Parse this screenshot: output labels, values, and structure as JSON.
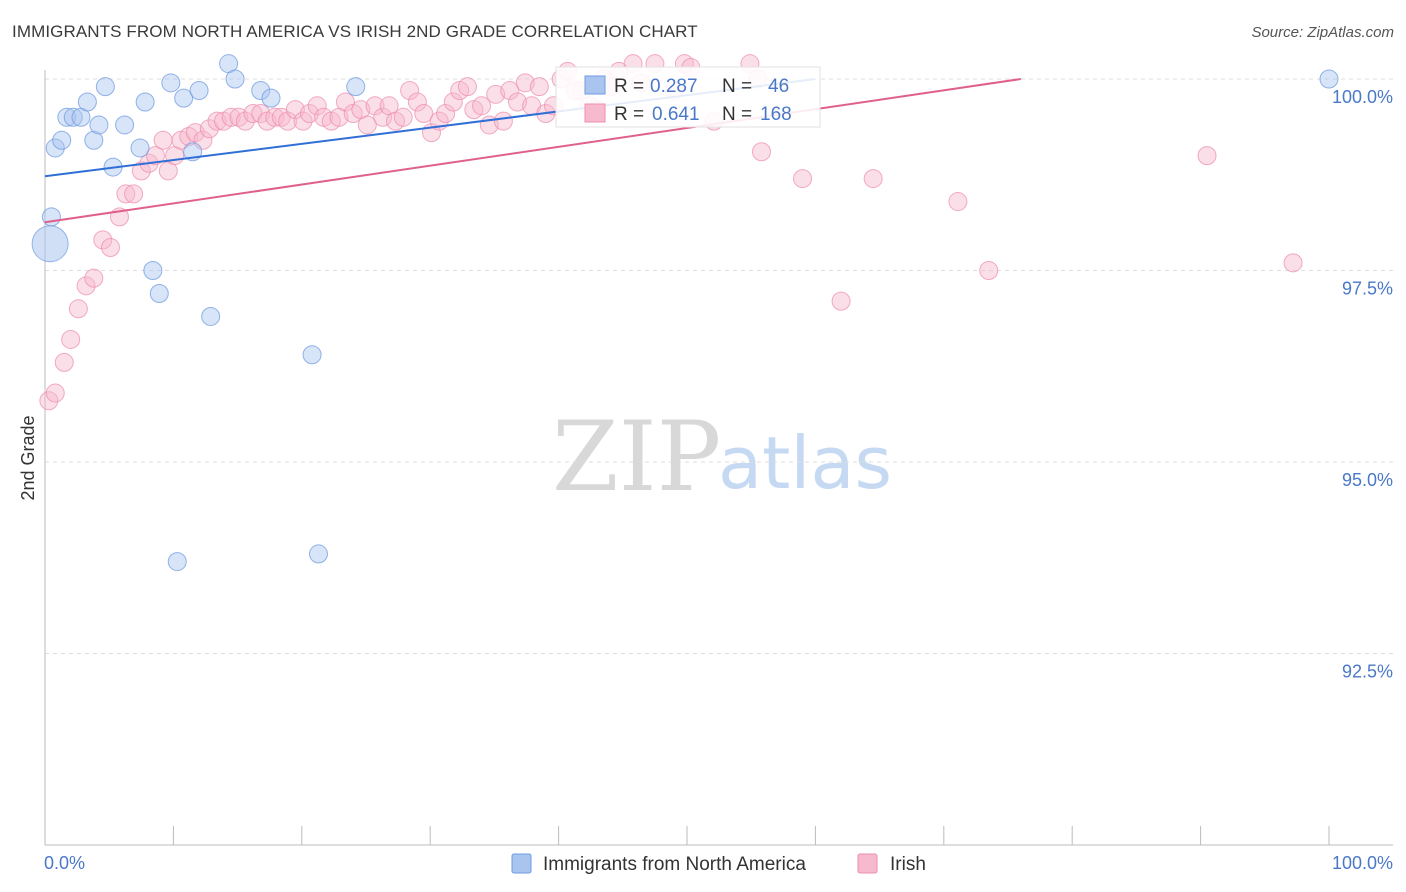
{
  "title": "IMMIGRANTS FROM NORTH AMERICA VS IRISH 2ND GRADE CORRELATION CHART",
  "source": "Source: ZipAtlas.com",
  "watermark": {
    "zip": "ZIP",
    "atlas": "atlas"
  },
  "colors": {
    "blue": "#6f9be0",
    "blue_fill": "#a9c4ef",
    "blue_line": "#2f6fd6",
    "pink": "#ee8fb0",
    "pink_fill": "#f6b9cd",
    "pink_line": "#e0608c",
    "tick_text": "#4a78c8",
    "grid": "#dddddd"
  },
  "chart_data": {
    "type": "scatter",
    "title": "IMMIGRANTS FROM NORTH AMERICA VS IRISH 2ND GRADE CORRELATION CHART",
    "xlabel": "",
    "ylabel": "2nd Grade",
    "xlim": [
      0,
      100
    ],
    "ylim": [
      89.8,
      100.4
    ],
    "x_tick_labels": {
      "left": "0.0%",
      "right": "100.0%"
    },
    "y_ticks": [
      {
        "value": 100.0,
        "label": "100.0%"
      },
      {
        "value": 97.5,
        "label": "97.5%"
      },
      {
        "value": 95.0,
        "label": "95.0%"
      },
      {
        "value": 92.5,
        "label": "92.5%"
      }
    ],
    "legend": {
      "stats": [
        {
          "r_label": "R =",
          "r": "0.287",
          "n_label": "N =",
          "n": "46"
        },
        {
          "r_label": "R =",
          "r": "0.641",
          "n_label": "N =",
          "n": "168"
        }
      ],
      "items": [
        "Immigrants from North America",
        "Irish"
      ]
    },
    "series": [
      {
        "name": "Immigrants from North America",
        "trend": {
          "x": [
            0,
            60
          ],
          "y": [
            98.73,
            100.0
          ]
        },
        "points": [
          [
            0.5,
            98.2
          ],
          [
            0.8,
            99.1
          ],
          [
            1.3,
            99.2
          ],
          [
            1.7,
            99.5
          ],
          [
            2.2,
            99.5
          ],
          [
            2.8,
            99.5
          ],
          [
            3.3,
            99.7
          ],
          [
            3.8,
            99.2
          ],
          [
            4.2,
            99.4
          ],
          [
            4.7,
            99.9
          ],
          [
            5.3,
            98.85
          ],
          [
            6.2,
            99.4
          ],
          [
            6.9,
            100.3
          ],
          [
            7.4,
            99.1
          ],
          [
            7.8,
            99.7
          ],
          [
            8.4,
            97.5
          ],
          [
            8.9,
            97.2
          ],
          [
            9.6,
            100.3
          ],
          [
            9.8,
            99.95
          ],
          [
            10.3,
            93.7
          ],
          [
            10.8,
            99.75
          ],
          [
            11.2,
            100.8
          ],
          [
            11.5,
            99.05
          ],
          [
            12.0,
            99.85
          ],
          [
            12.9,
            96.9
          ],
          [
            13.2,
            100.8
          ],
          [
            14.3,
            100.2
          ],
          [
            14.8,
            100.0
          ],
          [
            15.2,
            100.8
          ],
          [
            16.8,
            99.85
          ],
          [
            17.6,
            99.75
          ],
          [
            20.8,
            96.4
          ],
          [
            21.3,
            93.8
          ],
          [
            24.2,
            99.9
          ],
          [
            26.0,
            100.8
          ],
          [
            28.6,
            100.8
          ],
          [
            31.8,
            100.8
          ],
          [
            32.6,
            100.8
          ],
          [
            33.0,
            100.8
          ],
          [
            33.5,
            100.8
          ],
          [
            34.1,
            100.8
          ],
          [
            41.0,
            100.8
          ],
          [
            47.5,
            100.8
          ],
          [
            53.5,
            100.8
          ],
          [
            60.5,
            100.8
          ],
          [
            100.0,
            100.0
          ]
        ]
      },
      {
        "name": "Irish",
        "trend": {
          "x": [
            0,
            76
          ],
          "y": [
            98.13,
            100.0
          ]
        },
        "points": [
          [
            0.3,
            95.8
          ],
          [
            0.8,
            95.9
          ],
          [
            1.5,
            96.3
          ],
          [
            2.0,
            96.6
          ],
          [
            2.6,
            97.0
          ],
          [
            3.2,
            97.3
          ],
          [
            3.8,
            97.4
          ],
          [
            4.5,
            97.9
          ],
          [
            5.1,
            97.8
          ],
          [
            5.8,
            98.2
          ],
          [
            6.3,
            98.5
          ],
          [
            6.9,
            98.5
          ],
          [
            7.5,
            98.8
          ],
          [
            8.1,
            98.9
          ],
          [
            8.6,
            99.0
          ],
          [
            9.2,
            99.2
          ],
          [
            9.6,
            98.8
          ],
          [
            10.1,
            99.0
          ],
          [
            10.6,
            99.2
          ],
          [
            11.2,
            99.25
          ],
          [
            11.7,
            99.3
          ],
          [
            12.3,
            99.2
          ],
          [
            12.8,
            99.35
          ],
          [
            13.4,
            99.45
          ],
          [
            13.9,
            99.45
          ],
          [
            14.5,
            99.5
          ],
          [
            15.1,
            99.5
          ],
          [
            15.6,
            99.45
          ],
          [
            16.2,
            99.55
          ],
          [
            16.8,
            99.55
          ],
          [
            17.3,
            99.45
          ],
          [
            17.9,
            99.5
          ],
          [
            18.4,
            99.5
          ],
          [
            18.9,
            99.45
          ],
          [
            19.5,
            99.6
          ],
          [
            20.1,
            99.45
          ],
          [
            20.6,
            99.55
          ],
          [
            21.2,
            99.65
          ],
          [
            21.7,
            99.5
          ],
          [
            22.3,
            99.45
          ],
          [
            22.9,
            99.5
          ],
          [
            23.4,
            99.7
          ],
          [
            24.0,
            99.55
          ],
          [
            24.6,
            99.6
          ],
          [
            25.1,
            99.4
          ],
          [
            25.7,
            99.65
          ],
          [
            26.3,
            99.5
          ],
          [
            26.8,
            99.65
          ],
          [
            27.3,
            99.45
          ],
          [
            27.9,
            99.5
          ],
          [
            28.4,
            99.85
          ],
          [
            29.0,
            99.7
          ],
          [
            29.5,
            99.55
          ],
          [
            30.1,
            99.3
          ],
          [
            30.7,
            99.45
          ],
          [
            31.2,
            99.55
          ],
          [
            31.8,
            99.7
          ],
          [
            32.3,
            99.85
          ],
          [
            32.9,
            99.9
          ],
          [
            33.4,
            99.6
          ],
          [
            34.0,
            99.65
          ],
          [
            34.6,
            99.4
          ],
          [
            35.1,
            99.8
          ],
          [
            35.7,
            99.45
          ],
          [
            36.2,
            99.85
          ],
          [
            36.8,
            99.7
          ],
          [
            37.4,
            99.95
          ],
          [
            37.9,
            99.65
          ],
          [
            38.5,
            99.9
          ],
          [
            39.0,
            99.55
          ],
          [
            39.6,
            99.65
          ],
          [
            40.2,
            100.0
          ],
          [
            40.7,
            100.1
          ],
          [
            41.3,
            99.85
          ],
          [
            41.8,
            99.85
          ],
          [
            42.4,
            99.65
          ],
          [
            43.0,
            99.6
          ],
          [
            43.5,
            100.0
          ],
          [
            44.1,
            99.9
          ],
          [
            44.7,
            100.1
          ],
          [
            45.2,
            100.3
          ],
          [
            45.8,
            100.2
          ],
          [
            46.4,
            99.95
          ],
          [
            47.0,
            100.3
          ],
          [
            47.5,
            100.2
          ],
          [
            48.1,
            100.35
          ],
          [
            48.6,
            100.3
          ],
          [
            49.2,
            100.25
          ],
          [
            49.8,
            100.2
          ],
          [
            50.3,
            100.15
          ],
          [
            50.9,
            100.3
          ],
          [
            51.4,
            100.35
          ],
          [
            52.0,
            100.3
          ],
          [
            52.6,
            100.3
          ],
          [
            53.2,
            100.3
          ],
          [
            53.8,
            100.35
          ],
          [
            54.3,
            100.25
          ],
          [
            54.9,
            100.2
          ],
          [
            55.5,
            100.0
          ],
          [
            56.0,
            100.3
          ],
          [
            56.6,
            100.35
          ],
          [
            57.2,
            100.3
          ],
          [
            57.7,
            100.3
          ],
          [
            58.3,
            100.3
          ],
          [
            58.8,
            100.35
          ],
          [
            59.4,
            100.3
          ],
          [
            60.0,
            100.3
          ],
          [
            60.6,
            100.3
          ],
          [
            61.1,
            100.35
          ],
          [
            61.7,
            100.3
          ],
          [
            62.3,
            100.3
          ],
          [
            62.9,
            100.3
          ],
          [
            63.4,
            100.3
          ],
          [
            64.0,
            100.3
          ],
          [
            64.6,
            100.35
          ],
          [
            65.2,
            100.3
          ],
          [
            65.7,
            100.3
          ],
          [
            66.3,
            100.3
          ],
          [
            66.9,
            100.3
          ],
          [
            67.5,
            100.3
          ],
          [
            68.0,
            100.3
          ],
          [
            68.6,
            100.3
          ],
          [
            69.2,
            100.3
          ],
          [
            69.7,
            100.3
          ],
          [
            70.3,
            100.3
          ],
          [
            70.9,
            100.3
          ],
          [
            71.5,
            100.3
          ],
          [
            72.0,
            100.3
          ],
          [
            72.6,
            100.3
          ],
          [
            73.2,
            100.3
          ],
          [
            73.8,
            100.3
          ],
          [
            74.3,
            100.3
          ],
          [
            74.9,
            100.3
          ],
          [
            75.5,
            100.3
          ],
          [
            76.1,
            100.3
          ],
          [
            76.7,
            100.3
          ],
          [
            77.2,
            100.3
          ],
          [
            77.8,
            100.3
          ],
          [
            78.4,
            100.3
          ],
          [
            79.0,
            100.3
          ],
          [
            79.6,
            100.3
          ],
          [
            80.1,
            100.3
          ],
          [
            80.7,
            100.3
          ],
          [
            81.3,
            100.3
          ],
          [
            81.9,
            100.3
          ],
          [
            82.5,
            100.3
          ],
          [
            83.1,
            100.3
          ],
          [
            83.7,
            100.3
          ],
          [
            84.3,
            100.3
          ],
          [
            85.0,
            100.3
          ],
          [
            86.2,
            100.3
          ],
          [
            87.4,
            100.3
          ],
          [
            88.6,
            100.3
          ],
          [
            90.0,
            100.3
          ],
          [
            91.8,
            100.3
          ],
          [
            93.9,
            100.3
          ],
          [
            96.1,
            100.3
          ],
          [
            49.0,
            99.85
          ],
          [
            52.1,
            99.45
          ],
          [
            55.8,
            99.05
          ],
          [
            59.0,
            98.7
          ],
          [
            62.0,
            97.1
          ],
          [
            64.5,
            98.7
          ],
          [
            71.1,
            98.4
          ],
          [
            73.5,
            97.5
          ],
          [
            78.2,
            100.5
          ],
          [
            97.2,
            97.6
          ],
          [
            90.5,
            99.0
          ]
        ]
      }
    ]
  }
}
